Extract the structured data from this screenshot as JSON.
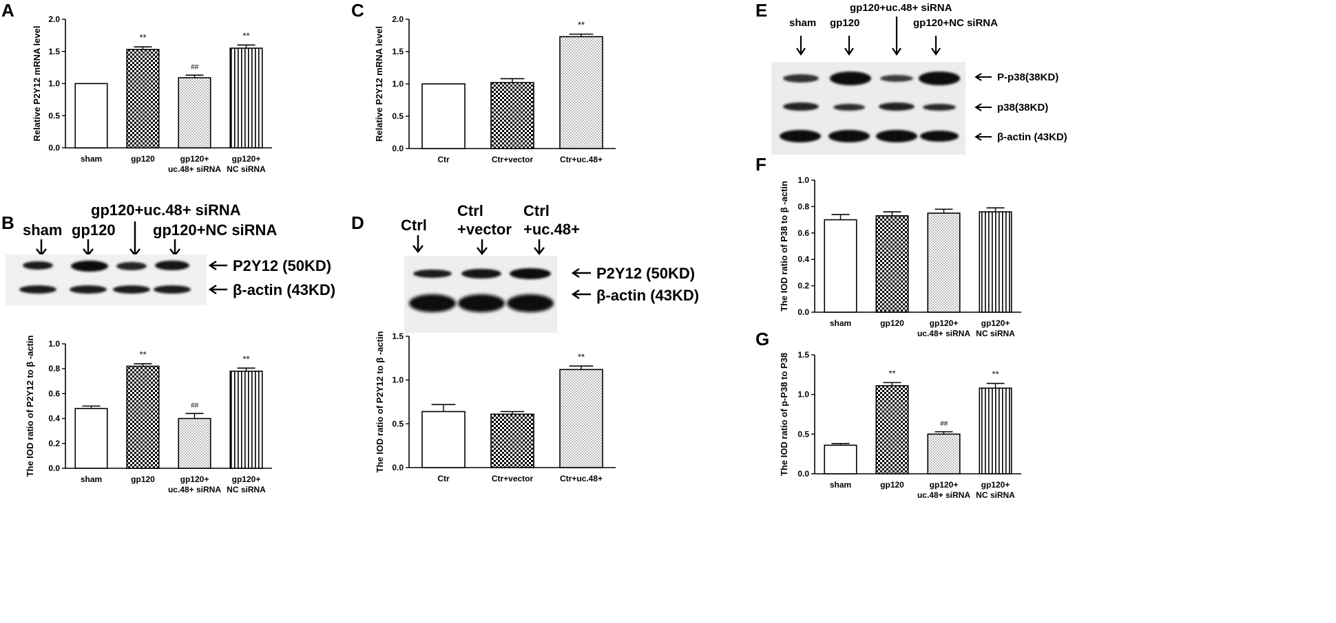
{
  "panels": {
    "A": "A",
    "B": "B",
    "C": "C",
    "D": "D",
    "E": "E",
    "F": "F",
    "G": "G"
  },
  "blot_B": {
    "lanes": [
      "sham",
      "gp120",
      "gp120+uc.48+ siRNA",
      "gp120+NC siRNA"
    ],
    "bands": [
      "P2Y12 (50KD)",
      "β-actin (43KD)"
    ]
  },
  "blot_D": {
    "lanes": [
      "Ctrl",
      "Ctrl",
      "Ctrl"
    ],
    "lanes_line2": [
      "",
      "+vector",
      "+uc.48+"
    ],
    "bands": [
      "P2Y12 (50KD)",
      "β-actin (43KD)"
    ]
  },
  "blot_E": {
    "lanes": [
      "sham",
      "gp120",
      "gp120+uc.48+ siRNA",
      "gp120+NC  siRNA"
    ],
    "bands": [
      "P-p38(38KD)",
      "p38(38KD)",
      "β-actin (43KD)"
    ]
  },
  "chart_data": [
    {
      "panel": "A",
      "type": "bar",
      "ylabel": "Relative P2Y12 mRNA level",
      "ylim": [
        0,
        2.0
      ],
      "yticks": [
        "0.0",
        "0.5",
        "1.0",
        "1.5",
        "2.0"
      ],
      "categories": [
        [
          "sham"
        ],
        [
          "gp120"
        ],
        [
          "gp120+",
          "uc.48+ siRNA"
        ],
        [
          "gp120+",
          "NC siRNA"
        ]
      ],
      "values": [
        1.0,
        1.53,
        1.09,
        1.55
      ],
      "errors": [
        0.0,
        0.04,
        0.04,
        0.05
      ],
      "patterns": [
        "white",
        "checker",
        "dots",
        "vlines"
      ],
      "annotations": [
        "",
        "**",
        "##",
        "**"
      ]
    },
    {
      "panel": "B",
      "type": "bar",
      "ylabel": "The IOD ratio of  P2Y12 to β -actin",
      "ylim": [
        0,
        1.0
      ],
      "yticks": [
        "0.0",
        "0.2",
        "0.4",
        "0.6",
        "0.8",
        "1.0"
      ],
      "categories": [
        [
          "sham"
        ],
        [
          "gp120"
        ],
        [
          "gp120+",
          "uc.48+ siRNA"
        ],
        [
          "gp120+",
          "NC siRNA"
        ]
      ],
      "values": [
        0.48,
        0.82,
        0.4,
        0.78
      ],
      "errors": [
        0.02,
        0.02,
        0.04,
        0.025
      ],
      "patterns": [
        "white",
        "checker",
        "dots",
        "vlines"
      ],
      "annotations": [
        "",
        "**",
        "##",
        "**"
      ]
    },
    {
      "panel": "C",
      "type": "bar",
      "ylabel": "Relative P2Y12 mRNA level",
      "ylim": [
        0,
        2.0
      ],
      "yticks": [
        "0.0",
        "0.5",
        "1.0",
        "1.5",
        "2.0"
      ],
      "categories": [
        [
          "Ctr"
        ],
        [
          "Ctr+vector"
        ],
        [
          "Ctr+uc.48+"
        ]
      ],
      "values": [
        1.0,
        1.02,
        1.73
      ],
      "errors": [
        0.0,
        0.06,
        0.04
      ],
      "patterns": [
        "white",
        "checker",
        "dots"
      ],
      "annotations": [
        "",
        "",
        "**"
      ]
    },
    {
      "panel": "D",
      "type": "bar",
      "ylabel": "The IOD ratio of  P2Y12 to β -actin",
      "ylim": [
        0,
        1.5
      ],
      "yticks": [
        "0.0",
        "0.5",
        "1.0",
        "1.5"
      ],
      "categories": [
        [
          "Ctr"
        ],
        [
          "Ctr+vector"
        ],
        [
          "Ctr+uc.48+"
        ]
      ],
      "values": [
        0.64,
        0.61,
        1.12
      ],
      "errors": [
        0.08,
        0.03,
        0.04
      ],
      "patterns": [
        "white",
        "checker",
        "dots"
      ],
      "annotations": [
        "",
        "",
        "**"
      ]
    },
    {
      "panel": "F",
      "type": "bar",
      "ylabel": "The IOD ratio of  P38 to β -actin",
      "ylim": [
        0,
        1.0
      ],
      "yticks": [
        "0.0",
        "0.2",
        "0.4",
        "0.6",
        "0.8",
        "1.0"
      ],
      "categories": [
        [
          "sham"
        ],
        [
          "gp120"
        ],
        [
          "gp120+",
          "uc.48+ siRNA"
        ],
        [
          "gp120+",
          "NC siRNA"
        ]
      ],
      "values": [
        0.7,
        0.73,
        0.75,
        0.76
      ],
      "errors": [
        0.04,
        0.03,
        0.03,
        0.03
      ],
      "patterns": [
        "white",
        "checker",
        "dots",
        "vlines"
      ],
      "annotations": [
        "",
        "",
        "",
        ""
      ]
    },
    {
      "panel": "G",
      "type": "bar",
      "ylabel": "The IOD ratio of  p-P38 to P38",
      "ylim": [
        0,
        1.5
      ],
      "yticks": [
        "0.0",
        "0.5",
        "1.0",
        "1.5"
      ],
      "categories": [
        [
          "sham"
        ],
        [
          "gp120"
        ],
        [
          "gp120+",
          "uc.48+ siRNA"
        ],
        [
          "gp120+",
          "NC siRNA"
        ]
      ],
      "values": [
        0.36,
        1.11,
        0.5,
        1.08
      ],
      "errors": [
        0.02,
        0.04,
        0.03,
        0.06
      ],
      "patterns": [
        "white",
        "checker",
        "dots",
        "vlines"
      ],
      "annotations": [
        "",
        "**",
        "##",
        "**"
      ]
    }
  ]
}
